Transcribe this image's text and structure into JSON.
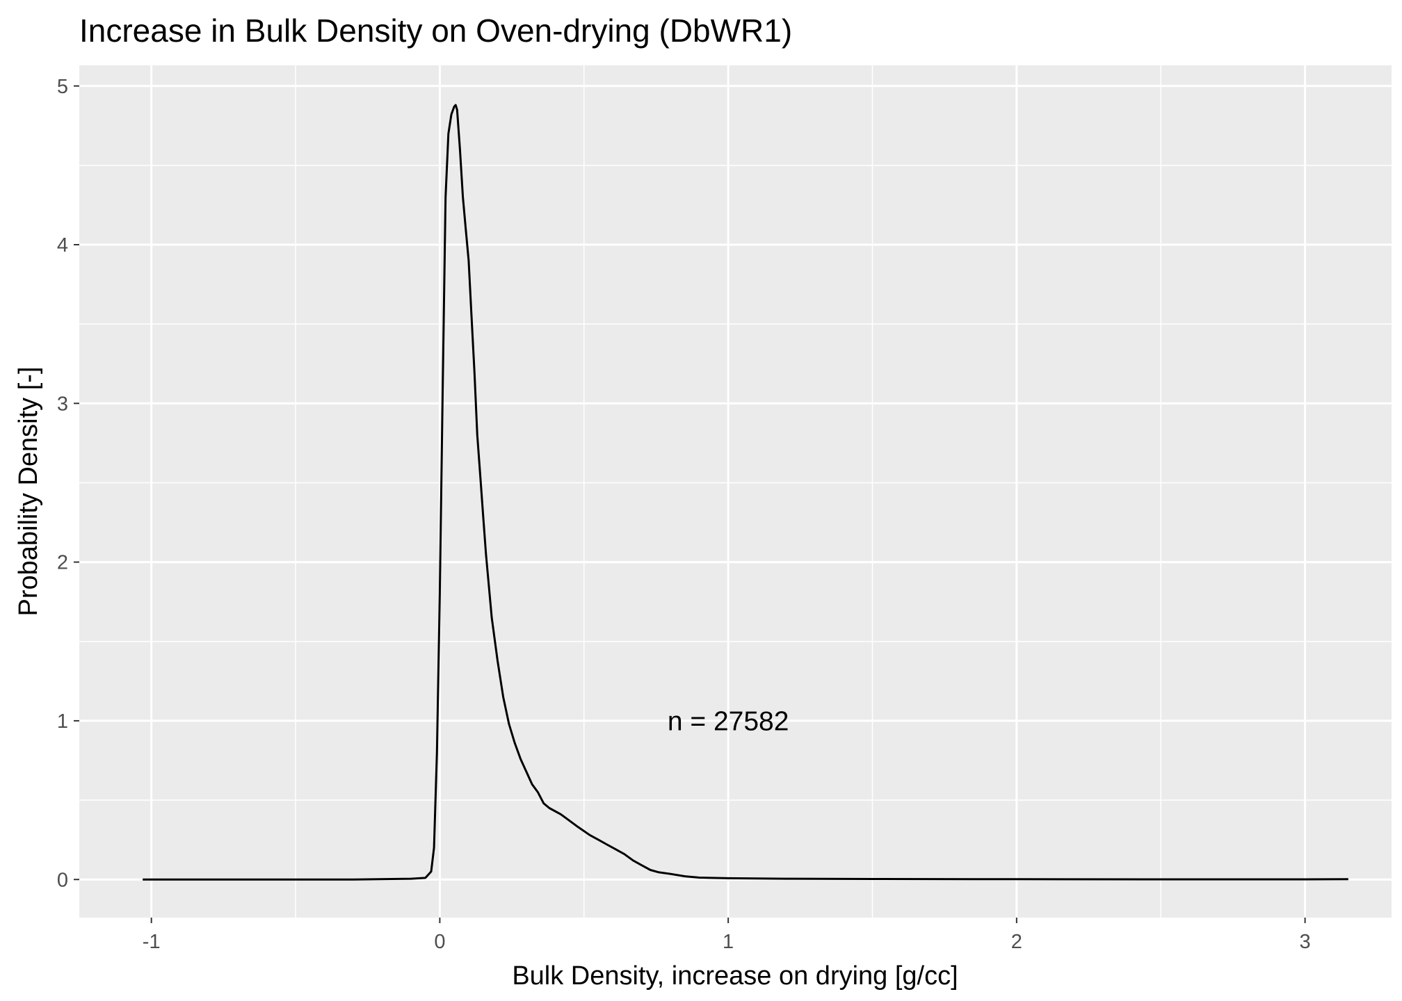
{
  "chart_data": {
    "type": "line",
    "title": "Increase in Bulk Density on Oven-drying (DbWR1)",
    "xlabel": "Bulk Density, increase on drying [g/cc]",
    "ylabel": "Probability Density [-]",
    "xlim": [
      -1.25,
      3.3
    ],
    "ylim": [
      -0.24,
      5.13
    ],
    "x_ticks": [
      -1,
      0,
      1,
      2,
      3
    ],
    "x_tick_labels": [
      "-1",
      "0",
      "1",
      "2",
      "3"
    ],
    "y_ticks": [
      0,
      1,
      2,
      3,
      4,
      5
    ],
    "y_tick_labels": [
      "0",
      "1",
      "2",
      "3",
      "4",
      "5"
    ],
    "grid": true,
    "background": "#ebebeb",
    "grid_color": "#ffffff",
    "line_color": "#000000",
    "annotation": {
      "text": "n = 27582",
      "x": 1.0,
      "y": 1.0
    },
    "series": [
      {
        "x": [
          -1.03,
          -0.6,
          -0.3,
          -0.1,
          -0.05,
          -0.03,
          -0.02,
          -0.01,
          0.0,
          0.01,
          0.02,
          0.03,
          0.04,
          0.05,
          0.055,
          0.06,
          0.07,
          0.08,
          0.09,
          0.1,
          0.11,
          0.12,
          0.13,
          0.14,
          0.15,
          0.16,
          0.18,
          0.2,
          0.22,
          0.24,
          0.26,
          0.28,
          0.3,
          0.32,
          0.34,
          0.36,
          0.38,
          0.4,
          0.42,
          0.45,
          0.48,
          0.52,
          0.55,
          0.58,
          0.61,
          0.64,
          0.67,
          0.7,
          0.73,
          0.76,
          0.8,
          0.85,
          0.9,
          1.0,
          1.2,
          1.5,
          2.0,
          2.5,
          3.0,
          3.15
        ],
        "y": [
          0.0,
          0.0,
          0.0,
          0.005,
          0.01,
          0.05,
          0.2,
          0.8,
          1.8,
          3.1,
          4.3,
          4.7,
          4.82,
          4.87,
          4.88,
          4.85,
          4.6,
          4.3,
          4.1,
          3.9,
          3.55,
          3.2,
          2.8,
          2.55,
          2.3,
          2.05,
          1.65,
          1.38,
          1.15,
          0.98,
          0.86,
          0.76,
          0.68,
          0.6,
          0.55,
          0.48,
          0.45,
          0.43,
          0.41,
          0.37,
          0.33,
          0.28,
          0.25,
          0.22,
          0.19,
          0.16,
          0.12,
          0.09,
          0.06,
          0.045,
          0.035,
          0.02,
          0.012,
          0.008,
          0.005,
          0.003,
          0.002,
          0.001,
          0.001,
          0.002
        ]
      }
    ]
  }
}
